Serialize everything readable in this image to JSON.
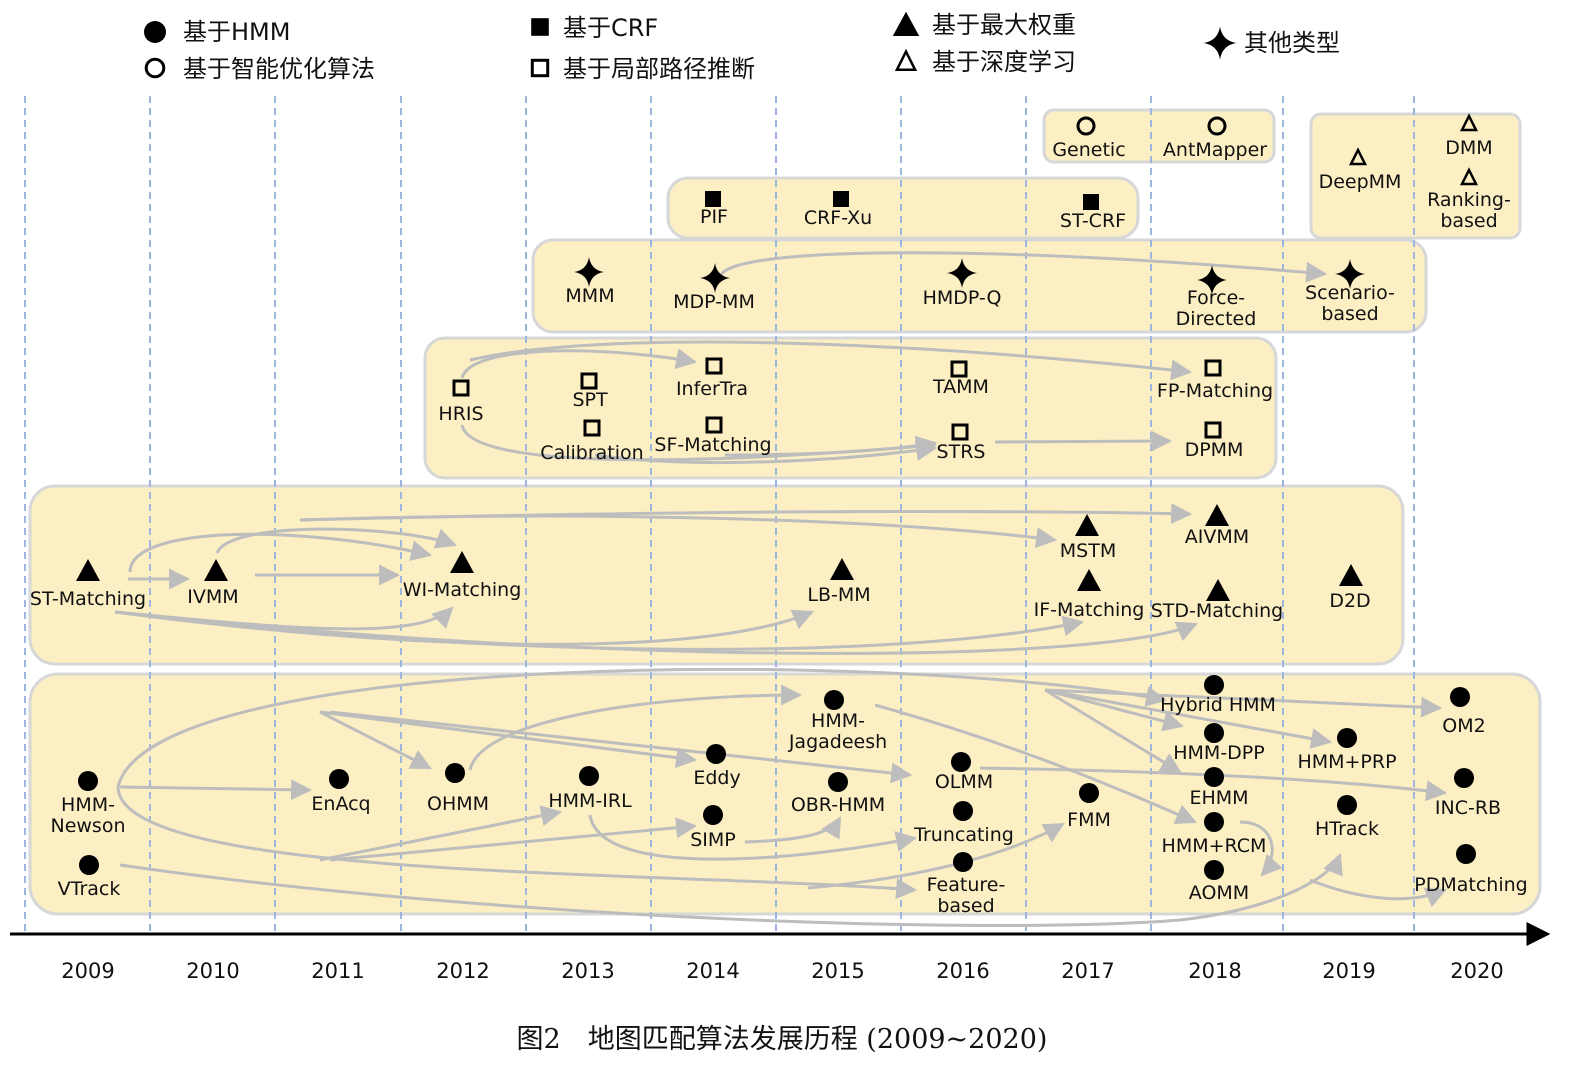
{
  "legend": [
    {
      "marker": "filled-circle",
      "label": "基于HMM"
    },
    {
      "marker": "hollow-circle",
      "label": "基于智能优化算法"
    },
    {
      "marker": "filled-square",
      "label": "基于CRF"
    },
    {
      "marker": "hollow-square",
      "label": "基于局部路径推断"
    },
    {
      "marker": "filled-triangle",
      "label": "基于最大权重"
    },
    {
      "marker": "hollow-triangle",
      "label": "基于深度学习"
    },
    {
      "marker": "four-point-star",
      "label": "其他类型"
    }
  ],
  "years": [
    "2009",
    "2010",
    "2011",
    "2012",
    "2013",
    "2014",
    "2015",
    "2016",
    "2017",
    "2018",
    "2019",
    "2020"
  ],
  "caption": "图2　地图匹配算法发展历程 (2009~2020)",
  "colors": {
    "group_fill": "#fcefc4",
    "group_stroke": "#d7d7d7",
    "arrow": "#bdbdbd",
    "divider": "#9cb6e0",
    "marker": "#000000"
  },
  "nodes": [
    {
      "id": "genetic",
      "label": "Genetic",
      "year": "2017",
      "marker": "hollow-circle"
    },
    {
      "id": "antmapper",
      "label": "AntMapper",
      "year": "2018",
      "marker": "hollow-circle"
    },
    {
      "id": "deepmm",
      "label": "DeepMM",
      "year": "2019",
      "marker": "hollow-triangle"
    },
    {
      "id": "dmm",
      "label": "DMM",
      "year": "2020",
      "marker": "hollow-triangle"
    },
    {
      "id": "ranking",
      "label": "Ranking-|based",
      "year": "2020",
      "marker": "hollow-triangle"
    },
    {
      "id": "pif",
      "label": "PIF",
      "year": "2014",
      "marker": "filled-square"
    },
    {
      "id": "crfxu",
      "label": "CRF-Xu",
      "year": "2015",
      "marker": "filled-square"
    },
    {
      "id": "stcrf",
      "label": "ST-CRF",
      "year": "2017",
      "marker": "filled-square"
    },
    {
      "id": "mmm",
      "label": "MMM",
      "year": "2013",
      "marker": "four-point-star"
    },
    {
      "id": "mdpmm",
      "label": "MDP-MM",
      "year": "2014",
      "marker": "four-point-star"
    },
    {
      "id": "hmdpq",
      "label": "HMDP-Q",
      "year": "2016",
      "marker": "four-point-star"
    },
    {
      "id": "force",
      "label": "Force-|Directed",
      "year": "2018",
      "marker": "four-point-star"
    },
    {
      "id": "scenario",
      "label": "Scenario-|based",
      "year": "2019",
      "marker": "four-point-star"
    },
    {
      "id": "hris",
      "label": "HRIS",
      "year": "2012",
      "marker": "hollow-square"
    },
    {
      "id": "spt",
      "label": "SPT",
      "year": "2013",
      "marker": "hollow-square"
    },
    {
      "id": "calibration",
      "label": "Calibration",
      "year": "2013",
      "marker": "hollow-square"
    },
    {
      "id": "infertra",
      "label": "InferTra",
      "year": "2014",
      "marker": "hollow-square"
    },
    {
      "id": "sfmatching",
      "label": "SF-Matching",
      "year": "2014",
      "marker": "hollow-square"
    },
    {
      "id": "tamm",
      "label": "TAMM",
      "year": "2016",
      "marker": "hollow-square"
    },
    {
      "id": "strs",
      "label": "STRS",
      "year": "2016",
      "marker": "hollow-square"
    },
    {
      "id": "fpmatching",
      "label": "FP-Matching",
      "year": "2018",
      "marker": "hollow-square"
    },
    {
      "id": "dpmm",
      "label": "DPMM",
      "year": "2018",
      "marker": "hollow-square"
    },
    {
      "id": "stmatching",
      "label": "ST-Matching",
      "year": "2009",
      "marker": "filled-triangle"
    },
    {
      "id": "ivmm",
      "label": "IVMM",
      "year": "2010",
      "marker": "filled-triangle"
    },
    {
      "id": "wimatching",
      "label": "WI-Matching",
      "year": "2012",
      "marker": "filled-triangle"
    },
    {
      "id": "lbmm",
      "label": "LB-MM",
      "year": "2015",
      "marker": "filled-triangle"
    },
    {
      "id": "mstm",
      "label": "MSTM",
      "year": "2017",
      "marker": "filled-triangle"
    },
    {
      "id": "ifmatching",
      "label": "IF-Matching",
      "year": "2017",
      "marker": "filled-triangle"
    },
    {
      "id": "aivmm",
      "label": "AIVMM",
      "year": "2018",
      "marker": "filled-triangle"
    },
    {
      "id": "stdmatching",
      "label": "STD-Matching",
      "year": "2018",
      "marker": "filled-triangle"
    },
    {
      "id": "d2d",
      "label": "D2D",
      "year": "2019",
      "marker": "filled-triangle"
    },
    {
      "id": "hmmnewson",
      "label": "HMM-|Newson",
      "year": "2009",
      "marker": "filled-circle"
    },
    {
      "id": "vtrack",
      "label": "VTrack",
      "year": "2009",
      "marker": "filled-circle"
    },
    {
      "id": "enacq",
      "label": "EnAcq",
      "year": "2011",
      "marker": "filled-circle"
    },
    {
      "id": "ohmm",
      "label": "OHMM",
      "year": "2012",
      "marker": "filled-circle"
    },
    {
      "id": "hmmirl",
      "label": "HMM-IRL",
      "year": "2013",
      "marker": "filled-circle"
    },
    {
      "id": "eddy",
      "label": "Eddy",
      "year": "2014",
      "marker": "filled-circle"
    },
    {
      "id": "simp",
      "label": "SIMP",
      "year": "2014",
      "marker": "filled-circle"
    },
    {
      "id": "hmmjag",
      "label": "HMM-|Jagadeesh",
      "year": "2015",
      "marker": "filled-circle"
    },
    {
      "id": "obrhmm",
      "label": "OBR-HMM",
      "year": "2015",
      "marker": "filled-circle"
    },
    {
      "id": "olmm",
      "label": "OLMM",
      "year": "2016",
      "marker": "filled-circle"
    },
    {
      "id": "truncating",
      "label": "Truncating",
      "year": "2016",
      "marker": "filled-circle"
    },
    {
      "id": "feature",
      "label": "Feature-|based",
      "year": "2016",
      "marker": "filled-circle"
    },
    {
      "id": "fmm",
      "label": "FMM",
      "year": "2017",
      "marker": "filled-circle"
    },
    {
      "id": "hybridhmm",
      "label": "Hybrid HMM",
      "year": "2018",
      "marker": "filled-circle"
    },
    {
      "id": "hmmdpp",
      "label": "HMM-DPP",
      "year": "2018",
      "marker": "filled-circle"
    },
    {
      "id": "ehmm",
      "label": "EHMM",
      "year": "2018",
      "marker": "filled-circle"
    },
    {
      "id": "hmmrcm",
      "label": "HMM+RCM",
      "year": "2018",
      "marker": "filled-circle"
    },
    {
      "id": "aomm",
      "label": "AOMM",
      "year": "2018",
      "marker": "filled-circle"
    },
    {
      "id": "hmmprp",
      "label": "HMM+PRP",
      "year": "2019",
      "marker": "filled-circle"
    },
    {
      "id": "htrack",
      "label": "HTrack",
      "year": "2019",
      "marker": "filled-circle"
    },
    {
      "id": "om2",
      "label": "OM2",
      "year": "2020",
      "marker": "filled-circle"
    },
    {
      "id": "incrb",
      "label": "INC-RB",
      "year": "2020",
      "marker": "filled-circle"
    },
    {
      "id": "pdmatching",
      "label": "PDMatching",
      "year": "2020",
      "marker": "filled-circle"
    }
  ]
}
